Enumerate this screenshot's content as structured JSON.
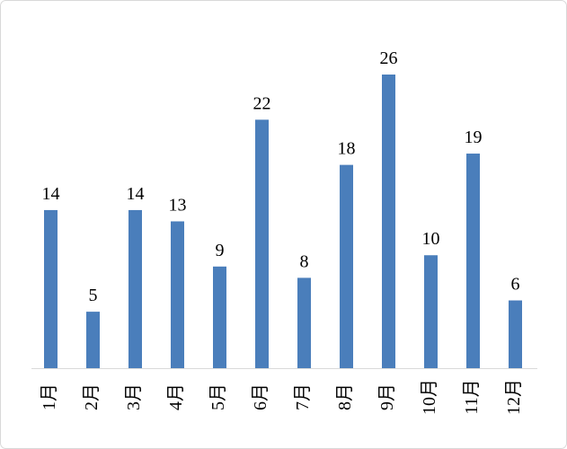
{
  "chart_data": {
    "type": "bar",
    "categories": [
      "1月",
      "2月",
      "3月",
      "4月",
      "5月",
      "6月",
      "7月",
      "8月",
      "9月",
      "10月",
      "11月",
      "12月"
    ],
    "values": [
      14,
      5,
      14,
      13,
      9,
      22,
      8,
      18,
      26,
      10,
      19,
      6
    ],
    "color": "#4a7ebb"
  }
}
